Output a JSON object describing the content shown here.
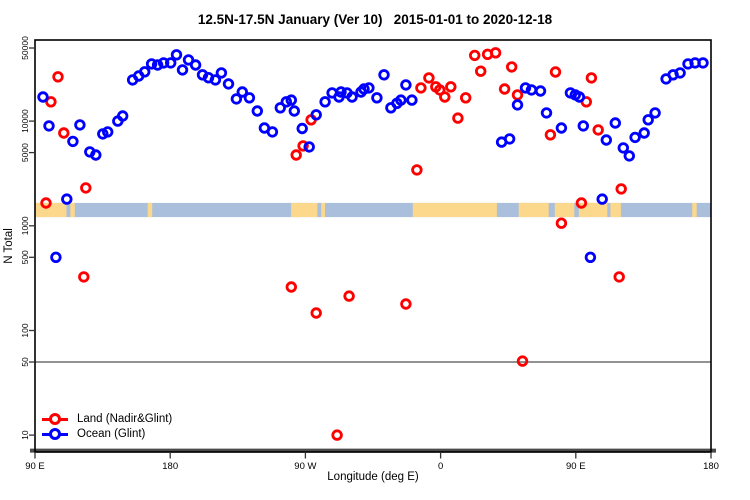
{
  "chart_data": {
    "type": "scatter",
    "title": "12.5N-17.5N January (Ver 10)   2015-01-01 to 2020-12-18",
    "xlabel": "Longitude (deg E)",
    "ylabel": "N Total",
    "x_axis": {
      "note": "wrapped longitude axis spanning 450 degrees starting at 90E",
      "range_deg": [
        0,
        450
      ],
      "tick_positions_deg": [
        0,
        90,
        180,
        270,
        360,
        450
      ],
      "tick_labels": [
        "90 E",
        "180",
        "90 W",
        "0",
        "90 E",
        "180"
      ]
    },
    "y_axis": {
      "scale": "log",
      "range": [
        6.9,
        59600
      ],
      "ticks": [
        10,
        50,
        100,
        500,
        1000,
        5000,
        10000,
        50000
      ],
      "tick_labels": [
        "10",
        "50",
        "100",
        "500",
        "1000",
        "5000",
        "10000",
        "50000"
      ]
    },
    "reference_line_y": 50,
    "grid": "off",
    "legend_position": "bottom-left",
    "map_band": {
      "description": "latitude-band world map strip drawn across plot",
      "band_value_range": [
        1210,
        1655
      ],
      "ocean_color": "#aabfdc",
      "land_color": "#fbd88c",
      "land_segments_deg": [
        [
          0,
          21
        ],
        [
          23.5,
          26.5
        ],
        [
          75,
          78
        ],
        [
          170.5,
          188
        ],
        [
          190.5,
          193
        ],
        [
          251.5,
          307.5
        ],
        [
          322,
          342
        ],
        [
          346,
          359
        ],
        [
          362,
          381
        ],
        [
          383,
          390
        ],
        [
          437.5,
          440.5
        ]
      ]
    },
    "series": [
      {
        "name": "Land (Nadir&Glint)",
        "color": "#ff0000",
        "points": [
          [
            7.3,
            1650
          ],
          [
            10.6,
            15300
          ],
          [
            15.3,
            26500
          ],
          [
            19.2,
            7700
          ],
          [
            32.5,
            325
          ],
          [
            33.8,
            2300
          ],
          [
            170.6,
            260
          ],
          [
            173.9,
            4750
          ],
          [
            178.5,
            5800
          ],
          [
            183.8,
            10300
          ],
          [
            187.2,
            147
          ],
          [
            201.1,
            10
          ],
          [
            209.1,
            213
          ],
          [
            246.9,
            179
          ],
          [
            254.2,
            3420
          ],
          [
            256.9,
            20800
          ],
          [
            262.2,
            25900
          ],
          [
            266.8,
            21300
          ],
          [
            269.5,
            19900
          ],
          [
            272.8,
            17000
          ],
          [
            276.8,
            21300
          ],
          [
            281.5,
            10700
          ],
          [
            286.7,
            16700
          ],
          [
            292.7,
            42500
          ],
          [
            296.7,
            30000
          ],
          [
            301.3,
            43500
          ],
          [
            306.6,
            45000
          ],
          [
            312.6,
            20300
          ],
          [
            317.3,
            33000
          ],
          [
            321.2,
            17800
          ],
          [
            324.5,
            51
          ],
          [
            343.1,
            7400
          ],
          [
            346.5,
            29500
          ],
          [
            350.4,
            1060
          ],
          [
            363.7,
            1650
          ],
          [
            367.0,
            15300
          ],
          [
            370.4,
            25900
          ],
          [
            374.9,
            8240
          ],
          [
            388.9,
            325
          ],
          [
            390.2,
            2250
          ]
        ]
      },
      {
        "name": "Ocean (Glint)",
        "color": "#0000ff",
        "points": [
          [
            5.3,
            17000
          ],
          [
            9.3,
            9000
          ],
          [
            13.9,
            500
          ],
          [
            21.2,
            1800
          ],
          [
            25.2,
            6400
          ],
          [
            29.9,
            9200
          ],
          [
            36.5,
            5080
          ],
          [
            40.5,
            4750
          ],
          [
            45.1,
            7550
          ],
          [
            48.4,
            7900
          ],
          [
            55.1,
            10000
          ],
          [
            58.4,
            11200
          ],
          [
            65.0,
            24800
          ],
          [
            69.0,
            27000
          ],
          [
            73.0,
            29600
          ],
          [
            77.6,
            35200
          ],
          [
            81.6,
            34400
          ],
          [
            85.6,
            36000
          ],
          [
            90.3,
            36000
          ],
          [
            94.2,
            43000
          ],
          [
            98.2,
            30900
          ],
          [
            102.2,
            38500
          ],
          [
            106.9,
            34400
          ],
          [
            111.5,
            27700
          ],
          [
            115.5,
            26000
          ],
          [
            120.1,
            24800
          ],
          [
            124.1,
            28900
          ],
          [
            128.8,
            22700
          ],
          [
            134.1,
            16300
          ],
          [
            138.0,
            19000
          ],
          [
            142.7,
            16700
          ],
          [
            148.0,
            12500
          ],
          [
            152.7,
            8600
          ],
          [
            158.0,
            7900
          ],
          [
            163.3,
            13400
          ],
          [
            167.3,
            15300
          ],
          [
            170.6,
            15900
          ],
          [
            172.6,
            12500
          ],
          [
            177.9,
            8500
          ],
          [
            182.5,
            5670
          ],
          [
            187.2,
            11500
          ],
          [
            193.1,
            15300
          ],
          [
            197.8,
            18600
          ],
          [
            202.4,
            17000
          ],
          [
            203.7,
            19000
          ],
          [
            207.7,
            18600
          ],
          [
            211.1,
            17000
          ],
          [
            217.0,
            19000
          ],
          [
            219.0,
            20300
          ],
          [
            222.3,
            20800
          ],
          [
            227.6,
            16700
          ],
          [
            232.3,
            27700
          ],
          [
            236.9,
            13400
          ],
          [
            240.9,
            14800
          ],
          [
            243.6,
            15900
          ],
          [
            246.9,
            22200
          ],
          [
            250.9,
            15900
          ],
          [
            310.6,
            6300
          ],
          [
            315.9,
            6760
          ],
          [
            321.2,
            14300
          ],
          [
            326.5,
            20800
          ],
          [
            330.5,
            19900
          ],
          [
            336.5,
            19400
          ],
          [
            340.5,
            12000
          ],
          [
            350.4,
            8600
          ],
          [
            356.4,
            18600
          ],
          [
            359.7,
            17800
          ],
          [
            362.4,
            17000
          ],
          [
            365.0,
            9000
          ],
          [
            369.7,
            500
          ],
          [
            377.6,
            1800
          ],
          [
            380.3,
            6600
          ],
          [
            386.3,
            9600
          ],
          [
            391.6,
            5550
          ],
          [
            395.6,
            4650
          ],
          [
            399.5,
            7000
          ],
          [
            405.5,
            7700
          ],
          [
            408.2,
            10300
          ],
          [
            412.8,
            12000
          ],
          [
            420.1,
            25300
          ],
          [
            424.8,
            27700
          ],
          [
            429.4,
            28900
          ],
          [
            434.7,
            35200
          ],
          [
            439.4,
            36000
          ],
          [
            444.7,
            36000
          ]
        ]
      }
    ]
  }
}
